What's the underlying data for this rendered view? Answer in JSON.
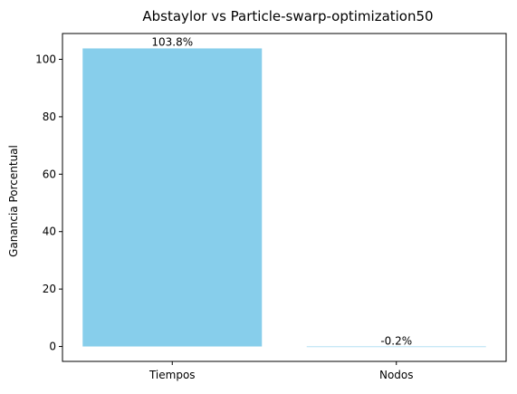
{
  "chart_data": {
    "type": "bar",
    "title": "Abstaylor vs Particle-swarp-optimization50",
    "xlabel": "",
    "ylabel": "Ganancia Porcentual",
    "categories": [
      "Tiempos",
      "Nodos"
    ],
    "values": [
      103.8,
      -0.2
    ],
    "data_labels": [
      "103.8%",
      "-0.2%"
    ],
    "bar_color": "#87ceeb",
    "ylim": [
      -5.19,
      108.99
    ],
    "yticks": [
      0,
      20,
      40,
      60,
      80,
      100
    ],
    "ytick_labels": [
      "0",
      "20",
      "40",
      "60",
      "80",
      "100"
    ],
    "grid": false,
    "legend": "none"
  }
}
